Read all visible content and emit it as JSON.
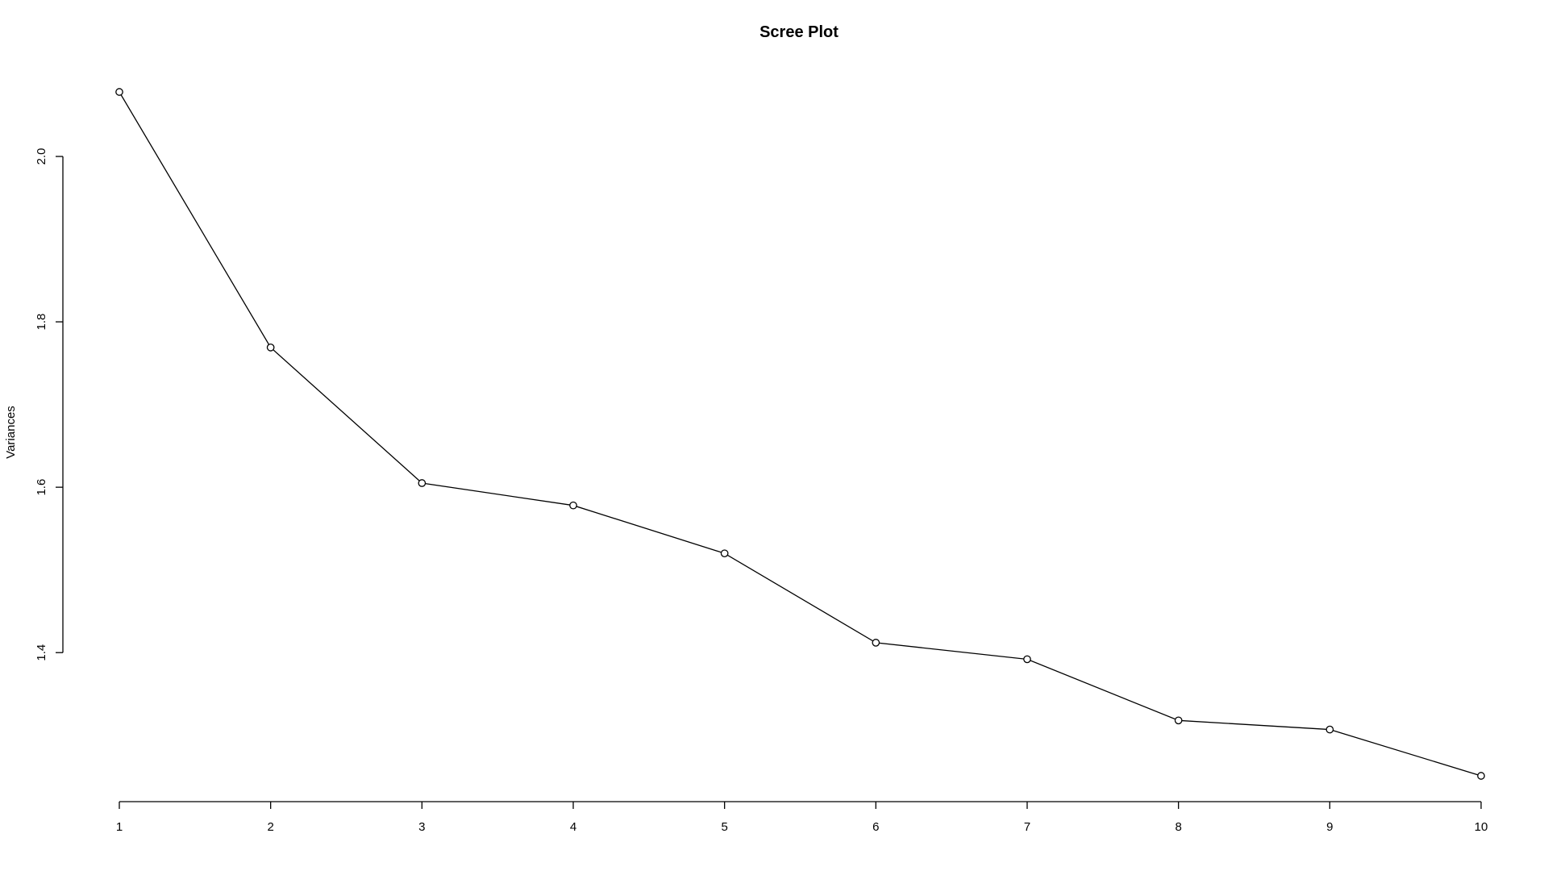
{
  "chart_data": {
    "type": "line",
    "title": "Scree Plot",
    "xlabel": "",
    "ylabel": "Variances",
    "x": [
      1,
      2,
      3,
      4,
      5,
      6,
      7,
      8,
      9,
      10
    ],
    "values": [
      2.078,
      1.769,
      1.605,
      1.578,
      1.52,
      1.412,
      1.392,
      1.318,
      1.307,
      1.251
    ],
    "xticks": [
      "1",
      "2",
      "3",
      "4",
      "5",
      "6",
      "7",
      "8",
      "9",
      "10"
    ],
    "yticks": [
      "1.4",
      "1.6",
      "1.8",
      "2.0"
    ],
    "xlim": [
      1,
      10
    ],
    "ylim": [
      1.251,
      2.078
    ],
    "grid": false,
    "marker": "open-circle",
    "line_color": "#000000",
    "background_color": "#ffffff"
  }
}
